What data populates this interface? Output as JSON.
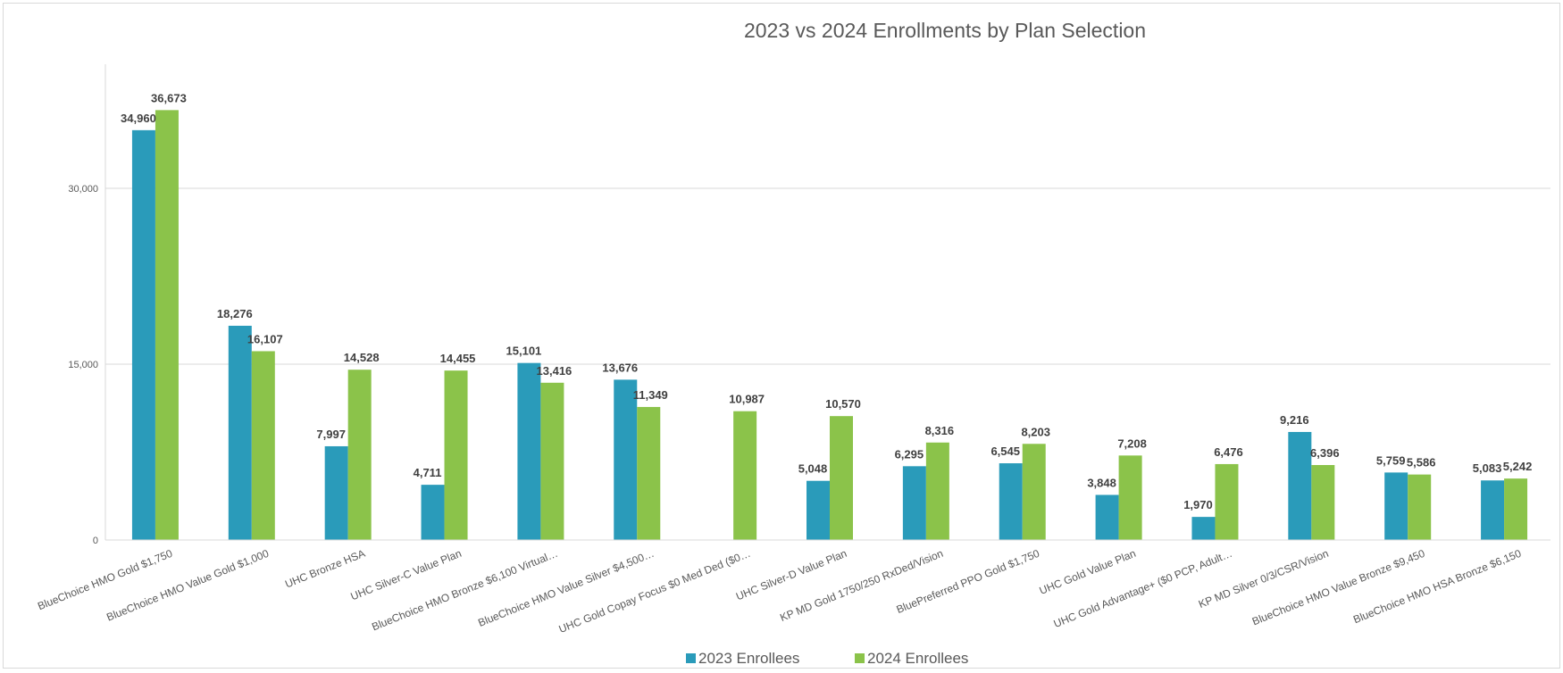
{
  "chart_data": {
    "type": "bar",
    "title": "2023 vs 2024 Enrollments by Plan Selection",
    "xlabel": "",
    "ylabel": "",
    "ylim": [
      0,
      40000
    ],
    "yticks": [
      0,
      15000,
      30000
    ],
    "ytick_labels": [
      "0",
      "15,000",
      "30,000"
    ],
    "grid": true,
    "legend_position": "bottom",
    "categories": [
      "BlueChoice HMO Gold $1,750",
      "BlueChoice HMO Value Gold $1,000",
      "UHC Bronze HSA",
      "UHC Silver-C Value Plan",
      "BlueChoice HMO Bronze $6,100 Virtual…",
      "BlueChoice HMO Value Silver $4,500…",
      "UHC Gold Copay Focus $0 Med Ded ($0…",
      "UHC Silver-D Value Plan",
      "KP MD Gold 1750/250 RxDed/Vision",
      "BluePreferred PPO Gold $1,750",
      "UHC Gold Value Plan",
      "UHC Gold Advantage+ ($0 PCP, Adult…",
      "KP MD Silver 0/3/CSR/Vision",
      "BlueChoice HMO Value Bronze $9,450",
      "BlueChoice HMO HSA Bronze $6,150"
    ],
    "series": [
      {
        "name": "2023 Enrollees",
        "color": "#2a9bba",
        "values": [
          34960,
          18276,
          7997,
          4711,
          15101,
          13676,
          null,
          5048,
          6295,
          6545,
          3848,
          1970,
          9216,
          5759,
          5083
        ],
        "labels": [
          "34,960",
          "18,276",
          "7,997",
          "4,711",
          "15,101",
          "13,676",
          "",
          "5,048",
          "6,295",
          "6,545",
          "3,848",
          "1,970",
          "9,216",
          "5,759",
          "5,083"
        ]
      },
      {
        "name": "2024 Enrollees",
        "color": "#8bc34a",
        "values": [
          36673,
          16107,
          14528,
          14455,
          13416,
          11349,
          10987,
          10570,
          8316,
          8203,
          7208,
          6476,
          6396,
          5586,
          5242
        ],
        "labels": [
          "36,673",
          "16,107",
          "14,528",
          "14,455",
          "13,416",
          "11,349",
          "10,987",
          "10,570",
          "8,316",
          "8,203",
          "7,208",
          "6,476",
          "6,396",
          "5,586",
          "5,242"
        ]
      }
    ]
  }
}
